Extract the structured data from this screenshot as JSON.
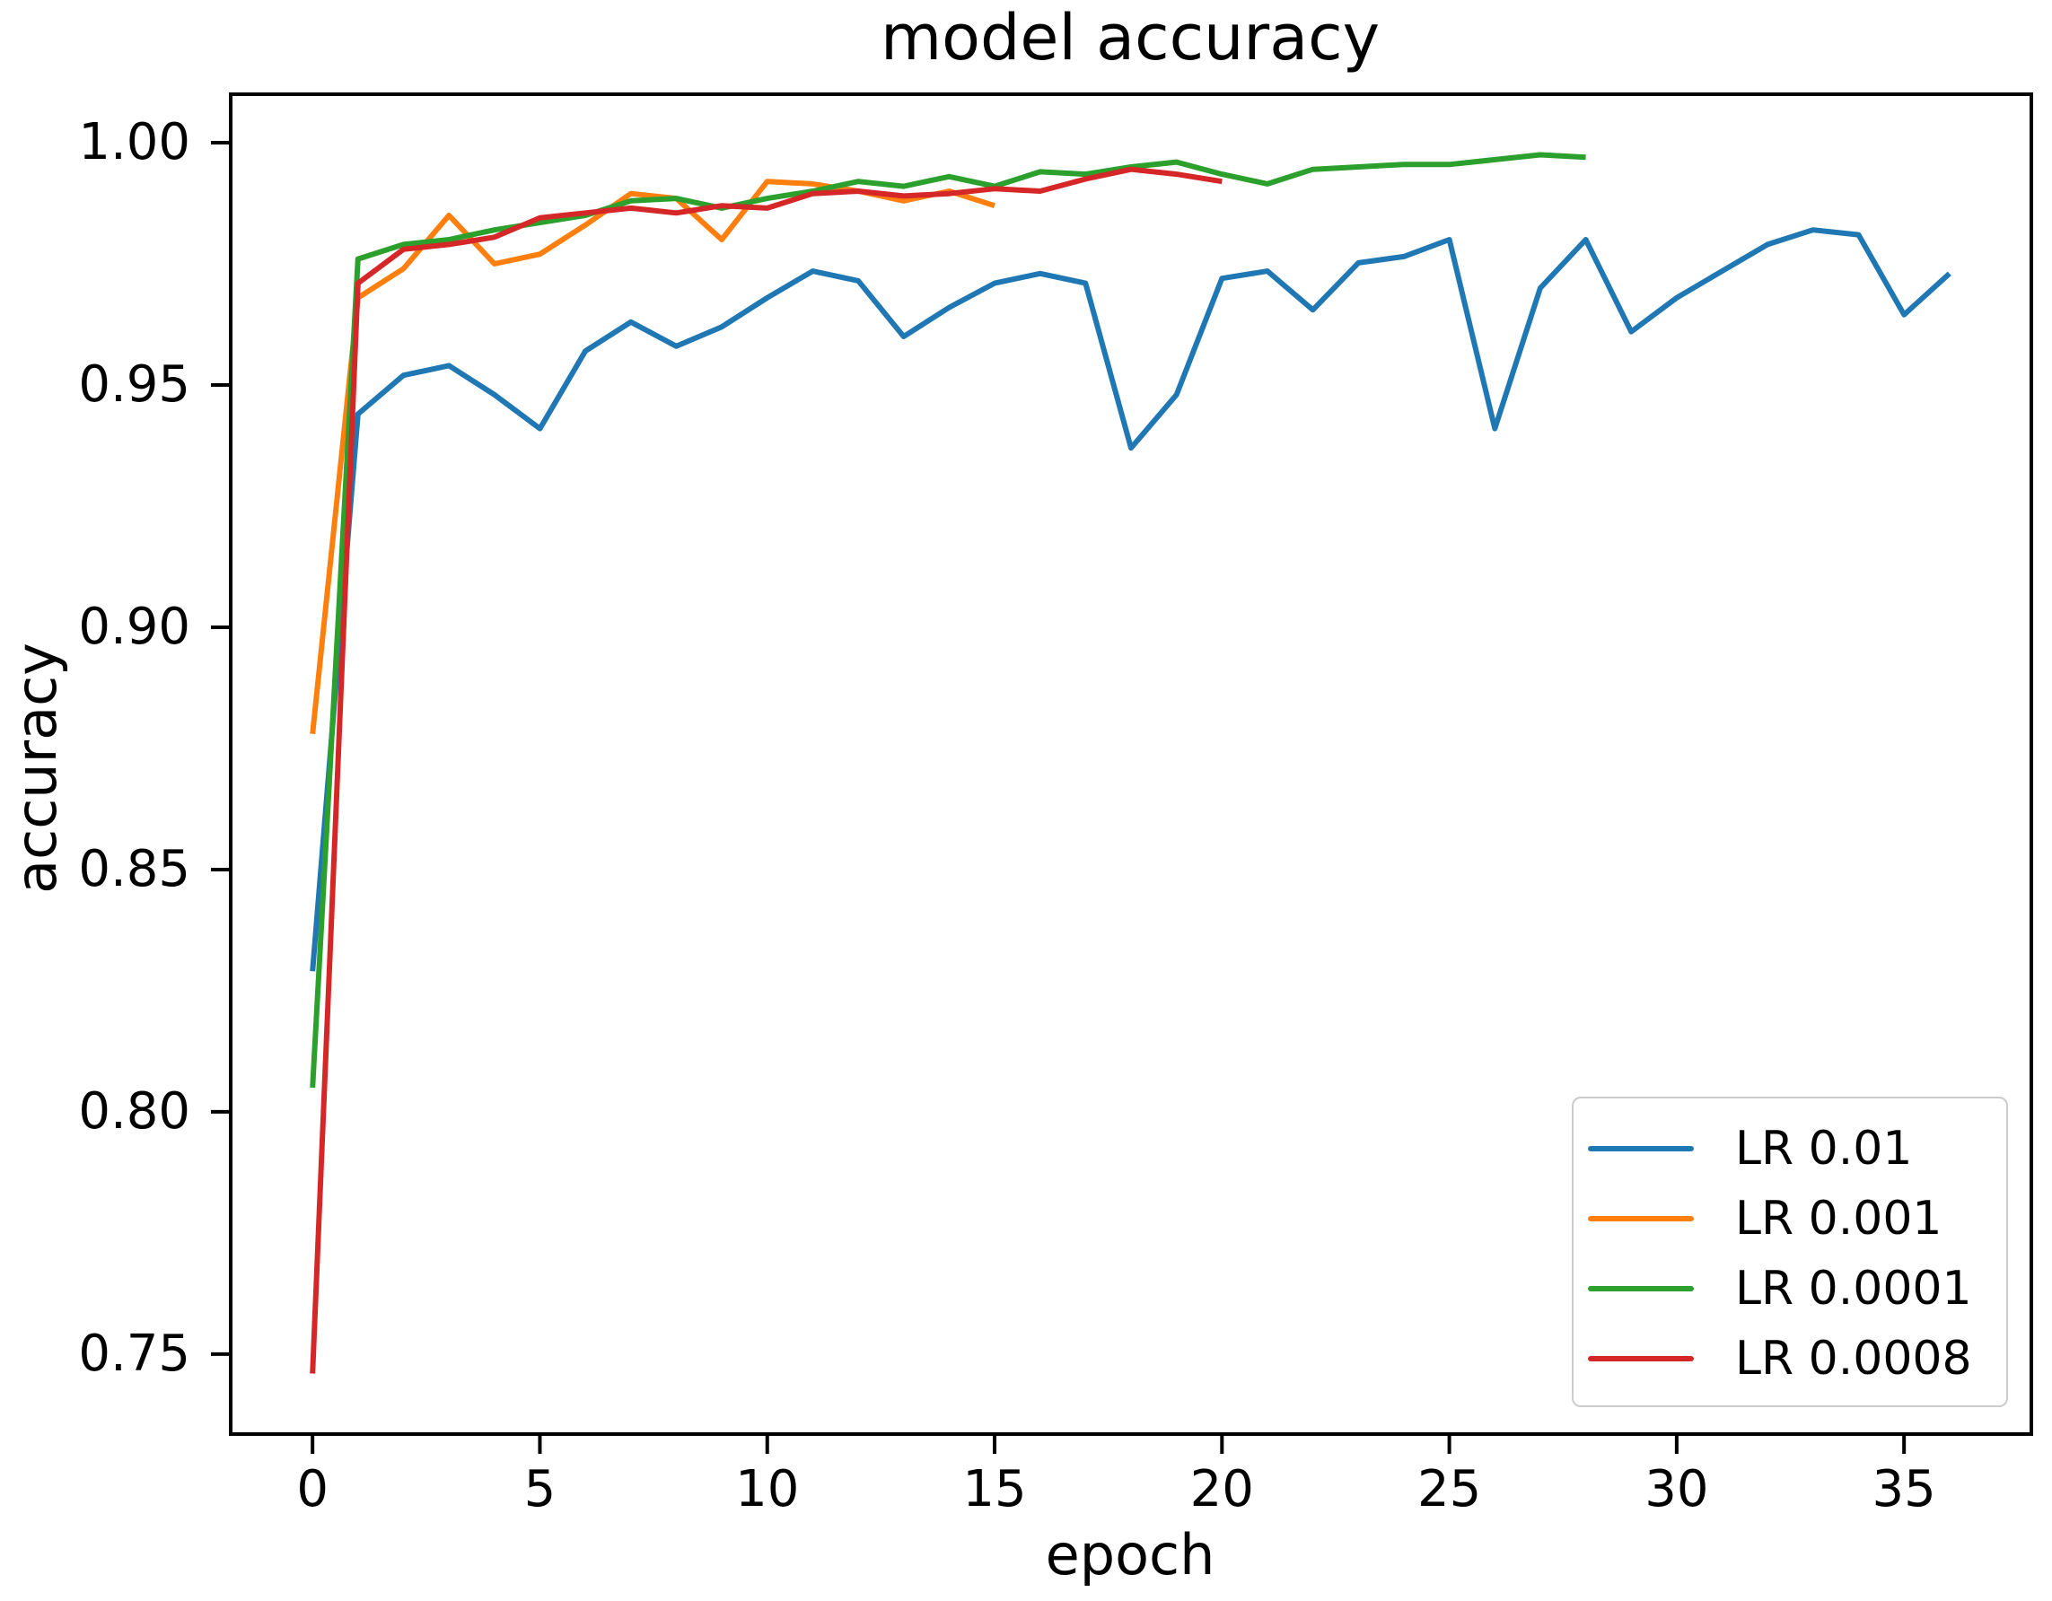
{
  "figure": {
    "background": "#ffffff",
    "text_color": "#000000",
    "axis_color": "#000000",
    "legend_border_color": "#cccccc"
  },
  "chart_data": {
    "type": "line",
    "title": "model accuracy",
    "xlabel": "epoch",
    "ylabel": "accuracy",
    "xlim": [
      -1.8,
      37.8
    ],
    "ylim": [
      0.7335,
      1.01
    ],
    "grid": false,
    "legend_position": "lower right",
    "xticks": [
      0,
      5,
      10,
      15,
      20,
      25,
      30,
      35
    ],
    "xtick_labels": [
      "0",
      "5",
      "10",
      "15",
      "20",
      "25",
      "30",
      "35"
    ],
    "yticks": [
      0.75,
      0.8,
      0.85,
      0.9,
      0.95,
      1.0
    ],
    "ytick_labels": [
      "0.75",
      "0.80",
      "0.85",
      "0.90",
      "0.95",
      "1.00"
    ],
    "series": [
      {
        "name": "LR 0.01",
        "color": "#1f77b4",
        "x": [
          0,
          1,
          2,
          3,
          4,
          5,
          6,
          7,
          8,
          9,
          10,
          11,
          12,
          13,
          14,
          15,
          16,
          17,
          18,
          19,
          20,
          21,
          22,
          23,
          24,
          25,
          26,
          27,
          28,
          29,
          30,
          31,
          32,
          33,
          34,
          35,
          36
        ],
        "values": [
          0.829,
          0.944,
          0.952,
          0.954,
          0.948,
          0.941,
          0.957,
          0.963,
          0.958,
          0.962,
          0.968,
          0.9735,
          0.9715,
          0.96,
          0.966,
          0.971,
          0.973,
          0.971,
          0.937,
          0.948,
          0.972,
          0.9735,
          0.9655,
          0.9752,
          0.9765,
          0.98,
          0.941,
          0.97,
          0.98,
          0.961,
          0.968,
          0.9735,
          0.979,
          0.982,
          0.981,
          0.9645,
          0.973
        ]
      },
      {
        "name": "LR 0.001",
        "color": "#ff7f0e",
        "x": [
          0,
          1,
          2,
          3,
          4,
          5,
          6,
          7,
          8,
          9,
          10,
          11,
          12,
          13,
          14,
          15
        ],
        "values": [
          0.878,
          0.968,
          0.974,
          0.985,
          0.975,
          0.977,
          0.983,
          0.9895,
          0.9885,
          0.98,
          0.992,
          0.9915,
          0.99,
          0.988,
          0.99,
          0.987
        ]
      },
      {
        "name": "LR 0.0001",
        "color": "#2ca02c",
        "x": [
          0,
          1,
          2,
          3,
          4,
          5,
          6,
          7,
          8,
          9,
          10,
          11,
          12,
          13,
          14,
          15,
          16,
          17,
          18,
          19,
          20,
          21,
          22,
          23,
          24,
          25,
          26,
          27,
          28
        ],
        "values": [
          0.805,
          0.976,
          0.979,
          0.98,
          0.982,
          0.9835,
          0.985,
          0.988,
          0.9885,
          0.9865,
          0.9885,
          0.99,
          0.992,
          0.991,
          0.993,
          0.991,
          0.994,
          0.9935,
          0.995,
          0.996,
          0.9935,
          0.9915,
          0.9945,
          0.995,
          0.9955,
          0.9955,
          0.9965,
          0.9975,
          0.997
        ]
      },
      {
        "name": "LR 0.0008",
        "color": "#d62728",
        "x": [
          0,
          1,
          2,
          3,
          4,
          5,
          6,
          7,
          8,
          9,
          10,
          11,
          12,
          13,
          14,
          15,
          16,
          17,
          18,
          19,
          20
        ],
        "values": [
          0.746,
          0.971,
          0.978,
          0.979,
          0.9805,
          0.9845,
          0.9855,
          0.9865,
          0.9855,
          0.987,
          0.9865,
          0.9895,
          0.99,
          0.989,
          0.9895,
          0.9905,
          0.99,
          0.9925,
          0.9945,
          0.9935,
          0.992
        ]
      }
    ]
  }
}
